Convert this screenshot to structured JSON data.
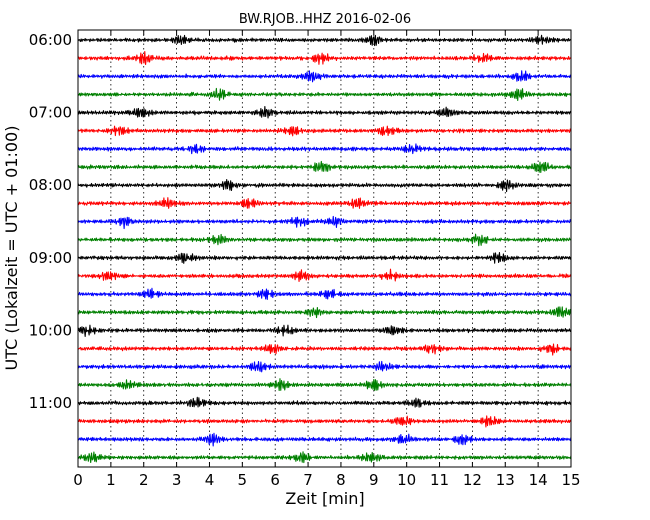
{
  "chart_data": {
    "type": "line",
    "title": "BW.RJOB..HHZ 2016-02-06",
    "xlabel": "Zeit  [min]",
    "ylabel": "UTC (Lokalzeit = UTC + 01:00)",
    "xlim": [
      0,
      15
    ],
    "x_ticks": [
      "0",
      "1",
      "2",
      "3",
      "4",
      "5",
      "6",
      "7",
      "8",
      "9",
      "10",
      "11",
      "12",
      "13",
      "14",
      "15"
    ],
    "y_ticks": [
      "06:00",
      "07:00",
      "08:00",
      "09:00",
      "10:00",
      "11:00"
    ],
    "grid": "vertical dotted at each minute",
    "color_cycle": [
      "#000000",
      "#ff0000",
      "#0000ff",
      "#008000"
    ],
    "lines_per_hour": 4,
    "line_minutes": 15,
    "traces": [
      {
        "start": "06:00",
        "color": "#000000",
        "bursts": [
          3.1,
          9.0,
          14.1
        ]
      },
      {
        "start": "06:15",
        "color": "#ff0000",
        "bursts": [
          2.0,
          7.4,
          12.3
        ]
      },
      {
        "start": "06:30",
        "color": "#0000ff",
        "bursts": [
          7.1,
          13.5
        ]
      },
      {
        "start": "06:45",
        "color": "#008000",
        "bursts": [
          4.3,
          13.4
        ]
      },
      {
        "start": "07:00",
        "color": "#000000",
        "bursts": [
          1.9,
          5.7,
          11.2
        ]
      },
      {
        "start": "07:15",
        "color": "#ff0000",
        "bursts": [
          1.2,
          6.5,
          9.4
        ]
      },
      {
        "start": "07:30",
        "color": "#0000ff",
        "bursts": [
          10.2,
          3.6
        ]
      },
      {
        "start": "07:45",
        "color": "#008000",
        "bursts": [
          7.4,
          14.1
        ]
      },
      {
        "start": "08:00",
        "color": "#000000",
        "bursts": [
          4.6,
          13.0
        ]
      },
      {
        "start": "08:15",
        "color": "#ff0000",
        "bursts": [
          2.7,
          5.2,
          8.5
        ]
      },
      {
        "start": "08:30",
        "color": "#0000ff",
        "bursts": [
          6.7,
          7.8,
          1.4
        ]
      },
      {
        "start": "08:45",
        "color": "#008000",
        "bursts": [
          4.3,
          12.2
        ]
      },
      {
        "start": "09:00",
        "color": "#000000",
        "bursts": [
          3.3,
          12.8
        ]
      },
      {
        "start": "09:15",
        "color": "#ff0000",
        "bursts": [
          6.8,
          9.5,
          0.9
        ]
      },
      {
        "start": "09:30",
        "color": "#0000ff",
        "bursts": [
          2.2,
          5.7,
          7.6
        ]
      },
      {
        "start": "09:45",
        "color": "#008000",
        "bursts": [
          7.2,
          14.7
        ]
      },
      {
        "start": "10:00",
        "color": "#000000",
        "bursts": [
          0.3,
          6.3,
          9.6
        ]
      },
      {
        "start": "10:15",
        "color": "#ff0000",
        "bursts": [
          5.9,
          10.8,
          14.4
        ]
      },
      {
        "start": "10:30",
        "color": "#0000ff",
        "bursts": [
          5.5,
          9.3
        ]
      },
      {
        "start": "10:45",
        "color": "#008000",
        "bursts": [
          1.5,
          6.2,
          9.0
        ]
      },
      {
        "start": "11:00",
        "color": "#000000",
        "bursts": [
          3.6,
          10.3
        ]
      },
      {
        "start": "11:15",
        "color": "#ff0000",
        "bursts": [
          9.9,
          12.5
        ]
      },
      {
        "start": "11:30",
        "color": "#0000ff",
        "bursts": [
          9.9,
          11.7,
          4.1
        ]
      },
      {
        "start": "11:45",
        "color": "#008000",
        "bursts": [
          0.4,
          6.8,
          8.9
        ]
      }
    ]
  }
}
